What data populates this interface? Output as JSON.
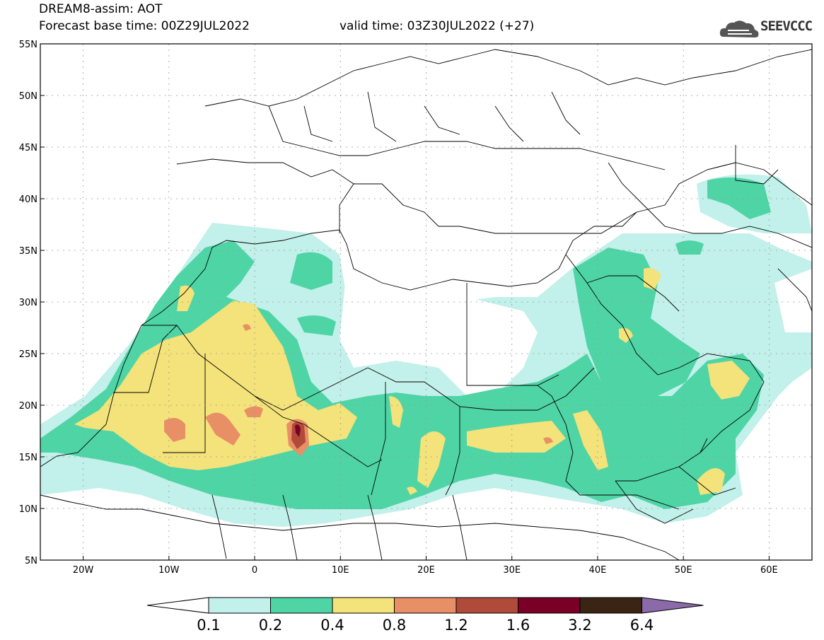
{
  "header": {
    "title": "DREAM8-assim: AOT",
    "base_time": "Forecast base time: 00Z29JUL2022",
    "valid_time": "valid time: 03Z30JUL2022 (+27)",
    "logo_text": "SEEVCCC"
  },
  "map": {
    "lon_range": [
      -25,
      65
    ],
    "lat_range": [
      5,
      55
    ],
    "lat_labels": [
      "55N",
      "50N",
      "45N",
      "40N",
      "35N",
      "30N",
      "25N",
      "20N",
      "15N",
      "10N",
      "5N"
    ],
    "lon_labels": [
      "20W",
      "10W",
      "0",
      "10E",
      "20E",
      "30E",
      "40E",
      "50E",
      "60E"
    ],
    "grid": true
  },
  "colorbar": {
    "labels": [
      "0.1",
      "0.2",
      "0.4",
      "0.8",
      "1.2",
      "1.6",
      "3.2",
      "6.4"
    ],
    "colors": [
      "#ffffff",
      "#c2f0ea",
      "#4fd4a6",
      "#f4e27a",
      "#e88f66",
      "#b04a3a",
      "#7a0028",
      "#3a2414",
      "#8a6aa8"
    ]
  }
}
